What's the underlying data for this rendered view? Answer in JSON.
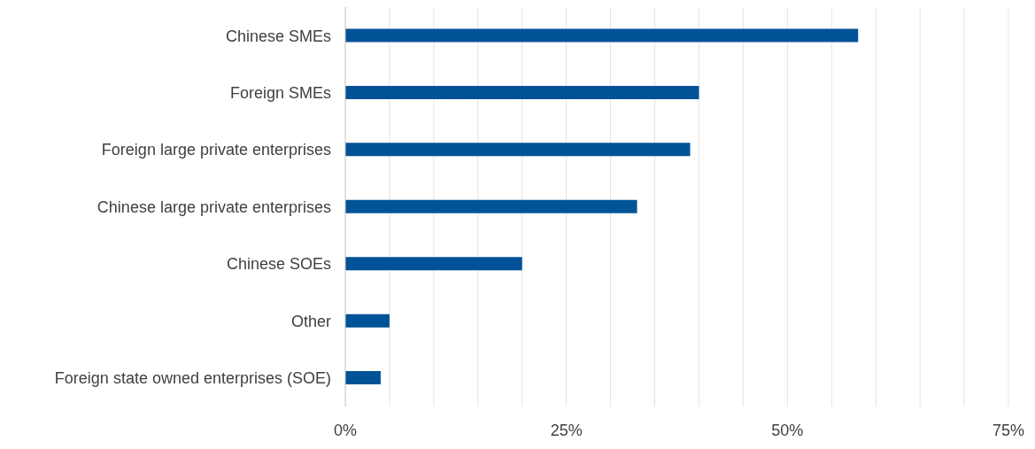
{
  "chart_data": {
    "type": "bar",
    "orientation": "horizontal",
    "categories": [
      "Chinese SMEs",
      "Foreign SMEs",
      "Foreign large private enterprises",
      "Chinese large private enterprises",
      "Chinese SOEs",
      "Other",
      "Foreign state owned enterprises (SOE)"
    ],
    "values": [
      58,
      40,
      39,
      33,
      20,
      5,
      4
    ],
    "color": "#005397",
    "xlim": [
      0,
      75
    ],
    "xticks": [
      {
        "value": 0,
        "label": "0%"
      },
      {
        "value": 5,
        "label": null
      },
      {
        "value": 10,
        "label": null
      },
      {
        "value": 15,
        "label": null
      },
      {
        "value": 20,
        "label": null
      },
      {
        "value": 25,
        "label": "25%"
      },
      {
        "value": 30,
        "label": null
      },
      {
        "value": 35,
        "label": null
      },
      {
        "value": 40,
        "label": null
      },
      {
        "value": 45,
        "label": null
      },
      {
        "value": 50,
        "label": "50%"
      },
      {
        "value": 55,
        "label": null
      },
      {
        "value": 60,
        "label": null
      },
      {
        "value": 65,
        "label": null
      },
      {
        "value": 70,
        "label": null
      },
      {
        "value": 75,
        "label": "75%"
      }
    ],
    "grid": "x"
  }
}
